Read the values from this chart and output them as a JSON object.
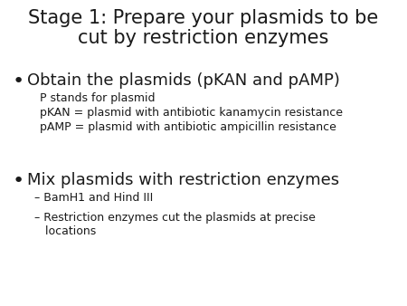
{
  "title_line1": "Stage 1: Prepare your plasmids to be",
  "title_line2": "cut by restriction enzymes",
  "title_fontsize": 15,
  "background_color": "#ffffff",
  "bullet1_text": "Obtain the plasmids (pKAN and pAMP)",
  "bullet1_fontsize": 13,
  "sub1_lines": [
    "P stands for plasmid",
    "pKAN = plasmid with antibiotic kanamycin resistance",
    "pAMP = plasmid with antibiotic ampicillin resistance"
  ],
  "sub1_fontsize": 9,
  "bullet2_text": "Mix plasmids with restriction enzymes",
  "bullet2_fontsize": 13,
  "sub2_lines": [
    "– BamH1 and Hind III",
    "– Restriction enzymes cut the plasmids at precise\n   locations"
  ],
  "sub2_fontsize": 9,
  "text_color": "#1a1a1a"
}
